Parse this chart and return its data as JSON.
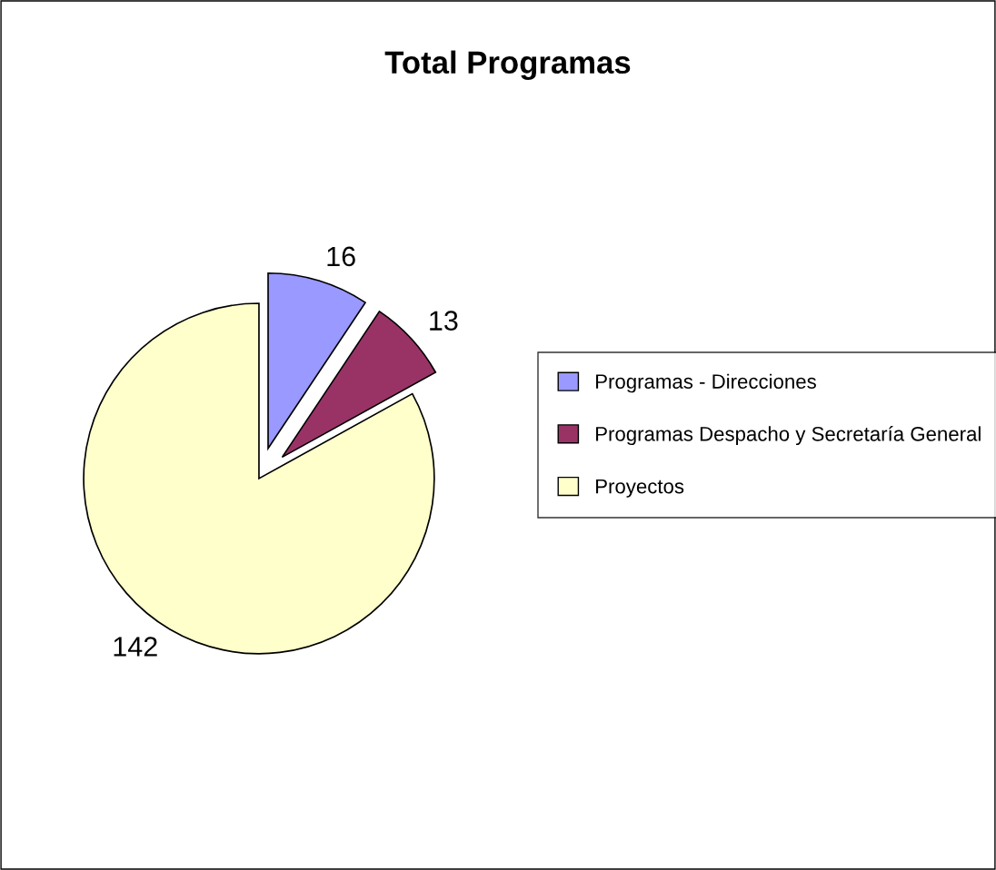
{
  "chart_data": {
    "type": "pie",
    "title": "Total Programas",
    "categories": [
      "Programas - Direcciones",
      "Programas Despacho y Secretaría General",
      "Proyectos"
    ],
    "values": [
      16,
      13,
      142
    ],
    "colors": [
      "#9999ff",
      "#993366",
      "#ffffcc"
    ],
    "data_labels": true,
    "legend": "right"
  }
}
